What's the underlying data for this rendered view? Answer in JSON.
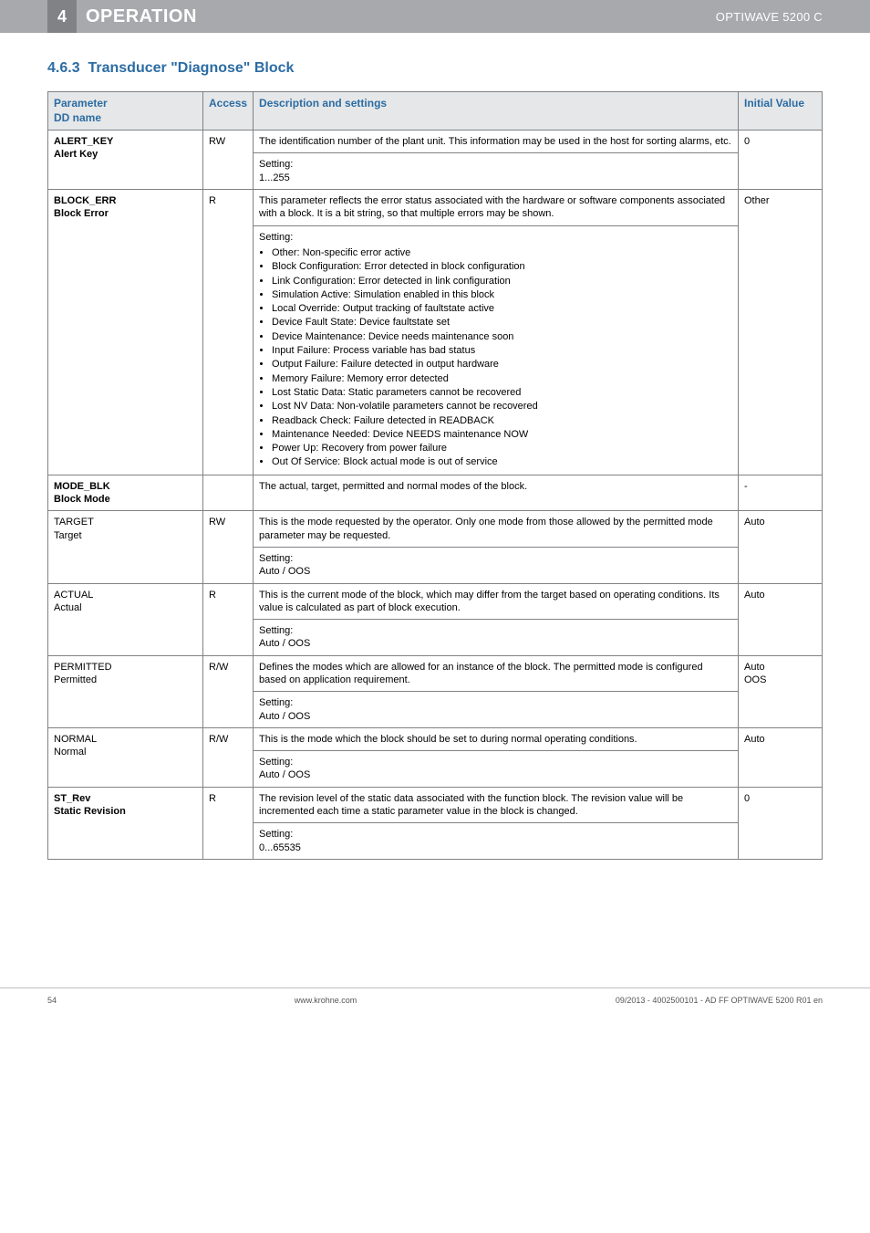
{
  "header": {
    "chapterNum": "4",
    "title": "OPERATION",
    "product": "OPTIWAVE 5200 C"
  },
  "section": {
    "number": "4.6.3",
    "title": "Transducer \"Diagnose\" Block"
  },
  "tableHeaders": {
    "param": "Parameter",
    "ddname": "DD name",
    "access": "Access",
    "desc": "Description and settings",
    "initial": "Initial Value"
  },
  "rows": {
    "alertKey": {
      "param": "ALERT_KEY",
      "dd": "Alert Key",
      "access": "RW",
      "desc": "The identification number of the plant unit. This information may be used in the host for sorting alarms, etc.",
      "settingLabel": "Setting:",
      "setting": "1...255",
      "initial": "0"
    },
    "blockErr": {
      "param": "BLOCK_ERR",
      "dd": "Block Error",
      "access": "R",
      "desc": "This parameter reflects the error status associated with the hardware or software components associated with a block. It is a bit string, so that multiple errors may be shown.",
      "settingLabel": "Setting:",
      "bullets": [
        "Other: Non-specific error active",
        "Block Configuration: Error detected in block configuration",
        "Link Configuration: Error detected in link configuration",
        "Simulation Active: Simulation enabled in this block",
        "Local Override: Output tracking of faultstate active",
        "Device Fault State: Device faultstate set",
        "Device Maintenance: Device needs maintenance soon",
        "Input Failure: Process variable has bad status",
        "Output Failure: Failure detected in output hardware",
        "Memory Failure: Memory error detected",
        "Lost Static Data: Static parameters cannot be recovered",
        "Lost NV Data: Non-volatile parameters cannot be recovered",
        "Readback Check: Failure detected in READBACK",
        "Maintenance Needed: Device NEEDS maintenance NOW",
        "Power Up: Recovery from power failure",
        "Out Of Service: Block actual mode is out of service"
      ],
      "initial": "Other"
    },
    "modeBlk": {
      "param": "MODE_BLK",
      "dd": "Block Mode",
      "access": "",
      "desc": "The actual, target, permitted and normal modes of the block.",
      "initial": "-"
    },
    "target": {
      "param": "TARGET",
      "dd": "Target",
      "access": "RW",
      "desc": "This is the mode requested by the operator. Only one mode from those allowed by the permitted mode parameter may be requested.",
      "settingLabel": "Setting:",
      "setting": "Auto / OOS",
      "initial": "Auto"
    },
    "actual": {
      "param": "ACTUAL",
      "dd": "Actual",
      "access": "R",
      "desc": "This is the current mode of the block, which may differ from the target based on operating conditions. Its value is calculated as part of block execution.",
      "settingLabel": "Setting:",
      "setting": "Auto / OOS",
      "initial": "Auto"
    },
    "permitted": {
      "param": "PERMITTED",
      "dd": "Permitted",
      "access": "R/W",
      "desc": "Defines the modes which are allowed for an instance of the block. The permitted mode is configured based on application requirement.",
      "settingLabel": "Setting:",
      "setting": "Auto / OOS",
      "initial": "Auto\nOOS"
    },
    "normal": {
      "param": "NORMAL",
      "dd": "Normal",
      "access": "R/W",
      "desc": "This is the mode which the block should be set to during normal operating conditions.",
      "settingLabel": "Setting:",
      "setting": "Auto / OOS",
      "initial": "Auto"
    },
    "stRev": {
      "param": "ST_Rev",
      "dd": "Static Revision",
      "access": "R",
      "desc": "The revision level of the static data associated with the function block. The revision value will be incremented each time a static parameter value in the block is changed.",
      "settingLabel": "Setting:",
      "setting": "0...65535",
      "initial": "0"
    }
  },
  "footer": {
    "page": "54",
    "center": "www.krohne.com",
    "right": "09/2013 - 4002500101 - AD FF OPTIWAVE 5200 R01 en"
  }
}
